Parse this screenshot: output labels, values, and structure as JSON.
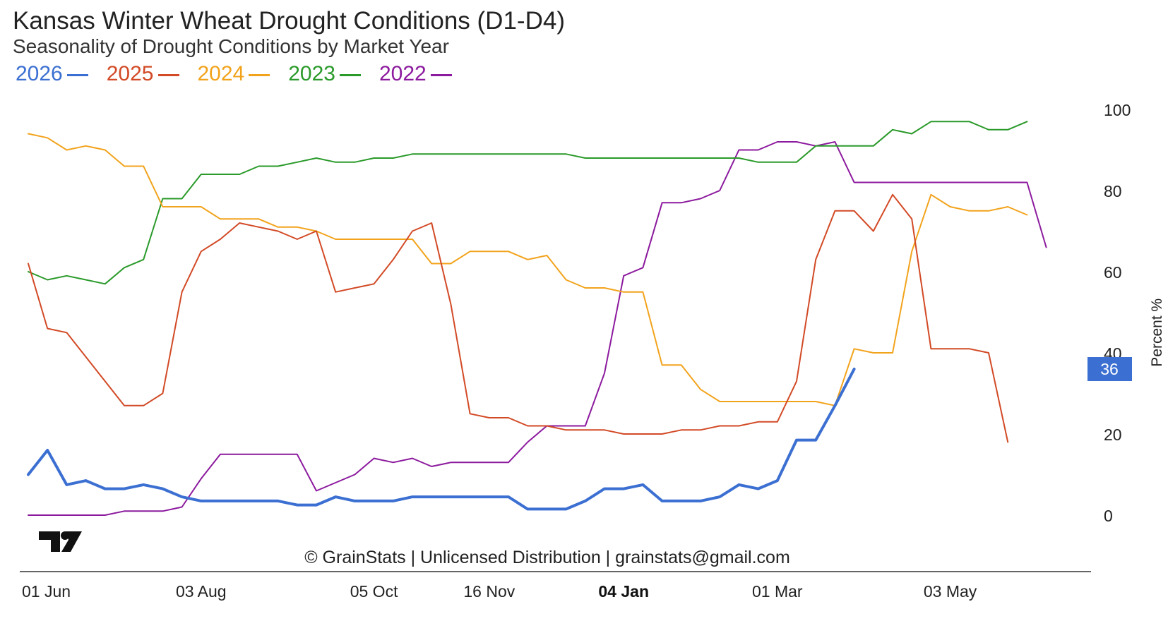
{
  "chart_data": {
    "type": "line",
    "title": "Kansas Winter Wheat Drought Conditions (D1-D4)",
    "subtitle": "Seasonality of Drought Conditions by Market Year",
    "ylabel": "Percent %",
    "ylim": [
      0,
      100
    ],
    "yticks": [
      "0",
      "20",
      "40",
      "60",
      "80",
      "100"
    ],
    "xtick_labels": [
      "01 Jun",
      "03 Aug",
      "05 Oct",
      "16 Nov",
      "04 Jan",
      "01 Mar",
      "03 May"
    ],
    "xtick_week_index": [
      0,
      9,
      18,
      24,
      31,
      39,
      48
    ],
    "xtick_bold": "04 Jan",
    "last_value_label": "36",
    "grid": false,
    "legend_position": "top-left",
    "series": [
      {
        "name": "2026",
        "color": "#3b6fd1",
        "width": 4,
        "values": [
          10,
          16,
          7.5,
          8.5,
          6.5,
          6.5,
          7.5,
          6.5,
          4.5,
          3.5,
          3.5,
          3.5,
          3.5,
          3.5,
          2.5,
          2.5,
          4.5,
          3.5,
          3.5,
          3.5,
          4.5,
          4.5,
          4.5,
          4.5,
          4.5,
          4.5,
          1.5,
          1.5,
          1.5,
          3.5,
          6.5,
          6.5,
          7.5,
          3.5,
          3.5,
          3.5,
          4.5,
          7.5,
          6.5,
          8.5,
          18.5,
          18.5,
          27,
          36
        ]
      },
      {
        "name": "2025",
        "color": "#d24a26",
        "width": 2,
        "values": [
          62,
          46,
          45,
          39,
          33,
          27,
          27,
          30,
          55,
          65,
          68,
          72,
          71,
          70,
          68,
          70,
          55,
          56,
          57,
          63,
          70,
          72,
          52,
          25,
          24,
          24,
          22,
          22,
          21,
          21,
          21,
          20,
          20,
          20,
          21,
          21,
          22,
          22,
          23,
          23,
          33,
          63,
          75,
          75,
          70,
          79,
          73,
          41,
          41,
          41,
          40,
          18
        ]
      },
      {
        "name": "2024",
        "color": "#f2a31c",
        "width": 2,
        "values": [
          94,
          93,
          90,
          91,
          90,
          86,
          86,
          76,
          76,
          76,
          73,
          73,
          73,
          71,
          71,
          70,
          68,
          68,
          68,
          68,
          68,
          62,
          62,
          65,
          65,
          65,
          63,
          64,
          58,
          56,
          56,
          55,
          55,
          37,
          37,
          31,
          28,
          28,
          28,
          28,
          28,
          28,
          27,
          41,
          40,
          40,
          65,
          79,
          76,
          75,
          75,
          76,
          74
        ]
      },
      {
        "name": "2023",
        "color": "#2a9a2a",
        "width": 2,
        "values": [
          60,
          58,
          59,
          58,
          57,
          61,
          63,
          78,
          78,
          84,
          84,
          84,
          86,
          86,
          87,
          88,
          87,
          87,
          88,
          88,
          89,
          89,
          89,
          89,
          89,
          89,
          89,
          89,
          89,
          88,
          88,
          88,
          88,
          88,
          88,
          88,
          88,
          88,
          87,
          87,
          87,
          91,
          91,
          91,
          91,
          95,
          94,
          97,
          97,
          97,
          95,
          95,
          97
        ]
      },
      {
        "name": "2022",
        "color": "#8c1a9e",
        "width": 2,
        "values": [
          0,
          0,
          0,
          0,
          0,
          1,
          1,
          1,
          2,
          9,
          15,
          15,
          15,
          15,
          15,
          6,
          8,
          10,
          14,
          13,
          14,
          12,
          13,
          13,
          13,
          13,
          18,
          22,
          22,
          22,
          35,
          59,
          61,
          77,
          77,
          78,
          80,
          90,
          90,
          92,
          92,
          91,
          92,
          82,
          82,
          82,
          82,
          82,
          82,
          82,
          82,
          82,
          82,
          66
        ]
      }
    ]
  },
  "footer": "© GrainStats | Unlicensed Distribution | grainstats@gmail.com"
}
